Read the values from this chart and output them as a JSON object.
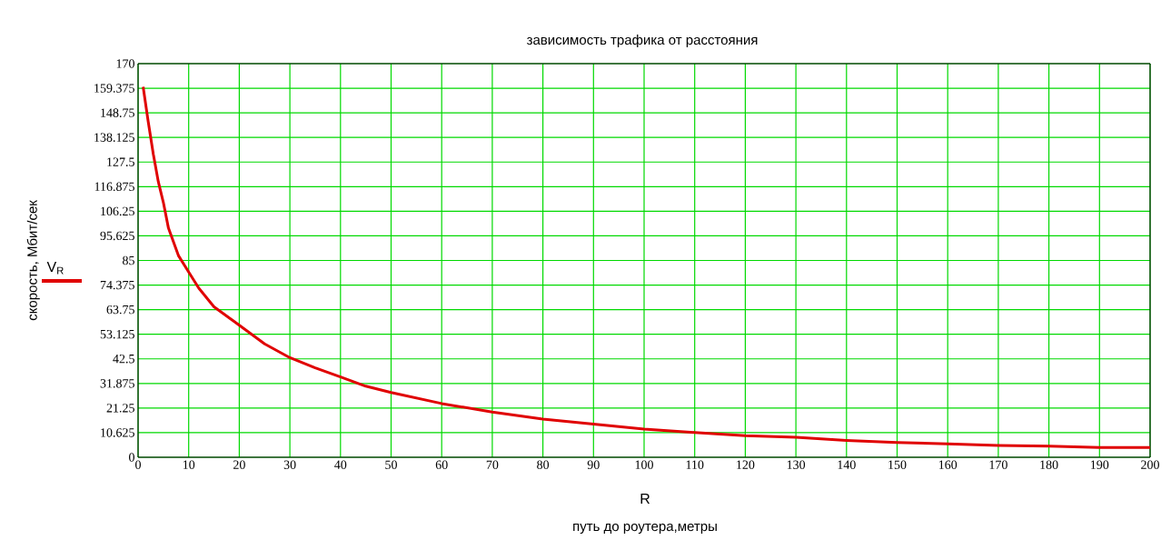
{
  "chart_data": {
    "type": "line",
    "title": "зависимость трафика  от расстояния",
    "xlabel": "путь до роутера,метры",
    "ylabel": "скорость, Мбит/сек",
    "annotations": [
      "R"
    ],
    "x": [
      1,
      2,
      3,
      4,
      5,
      6,
      8,
      10,
      12,
      15,
      20,
      25,
      30,
      35,
      40,
      45,
      50,
      60,
      70,
      80,
      90,
      100,
      110,
      120,
      130,
      140,
      150,
      160,
      170,
      180,
      190,
      200
    ],
    "series": [
      {
        "name": "V$_{R}$",
        "color": "#e00000",
        "values": [
          160,
          145,
          131,
          119,
          110,
          99,
          87,
          80,
          73,
          65,
          57,
          49,
          43,
          38.6,
          34.7,
          30.7,
          28,
          23.2,
          19.5,
          16.5,
          14.3,
          12.2,
          10.7,
          9.3,
          8.6,
          7.3,
          6.4,
          5.8,
          5.1,
          4.8,
          4.2,
          4.2
        ]
      }
    ],
    "xlim": [
      0,
      200
    ],
    "ylim": [
      0,
      170
    ],
    "xticks": [
      0,
      10,
      20,
      30,
      40,
      50,
      60,
      70,
      80,
      90,
      100,
      110,
      120,
      130,
      140,
      150,
      160,
      170,
      180,
      190,
      200
    ],
    "yticks": [
      0,
      10.625,
      21.25,
      31.875,
      42.5,
      53.125,
      63.75,
      74.375,
      85,
      95.625,
      106.25,
      116.875,
      127.5,
      138.125,
      148.75,
      159.375,
      170
    ],
    "grid": true,
    "legend": "left",
    "marker": "none",
    "line_style": "solid"
  }
}
